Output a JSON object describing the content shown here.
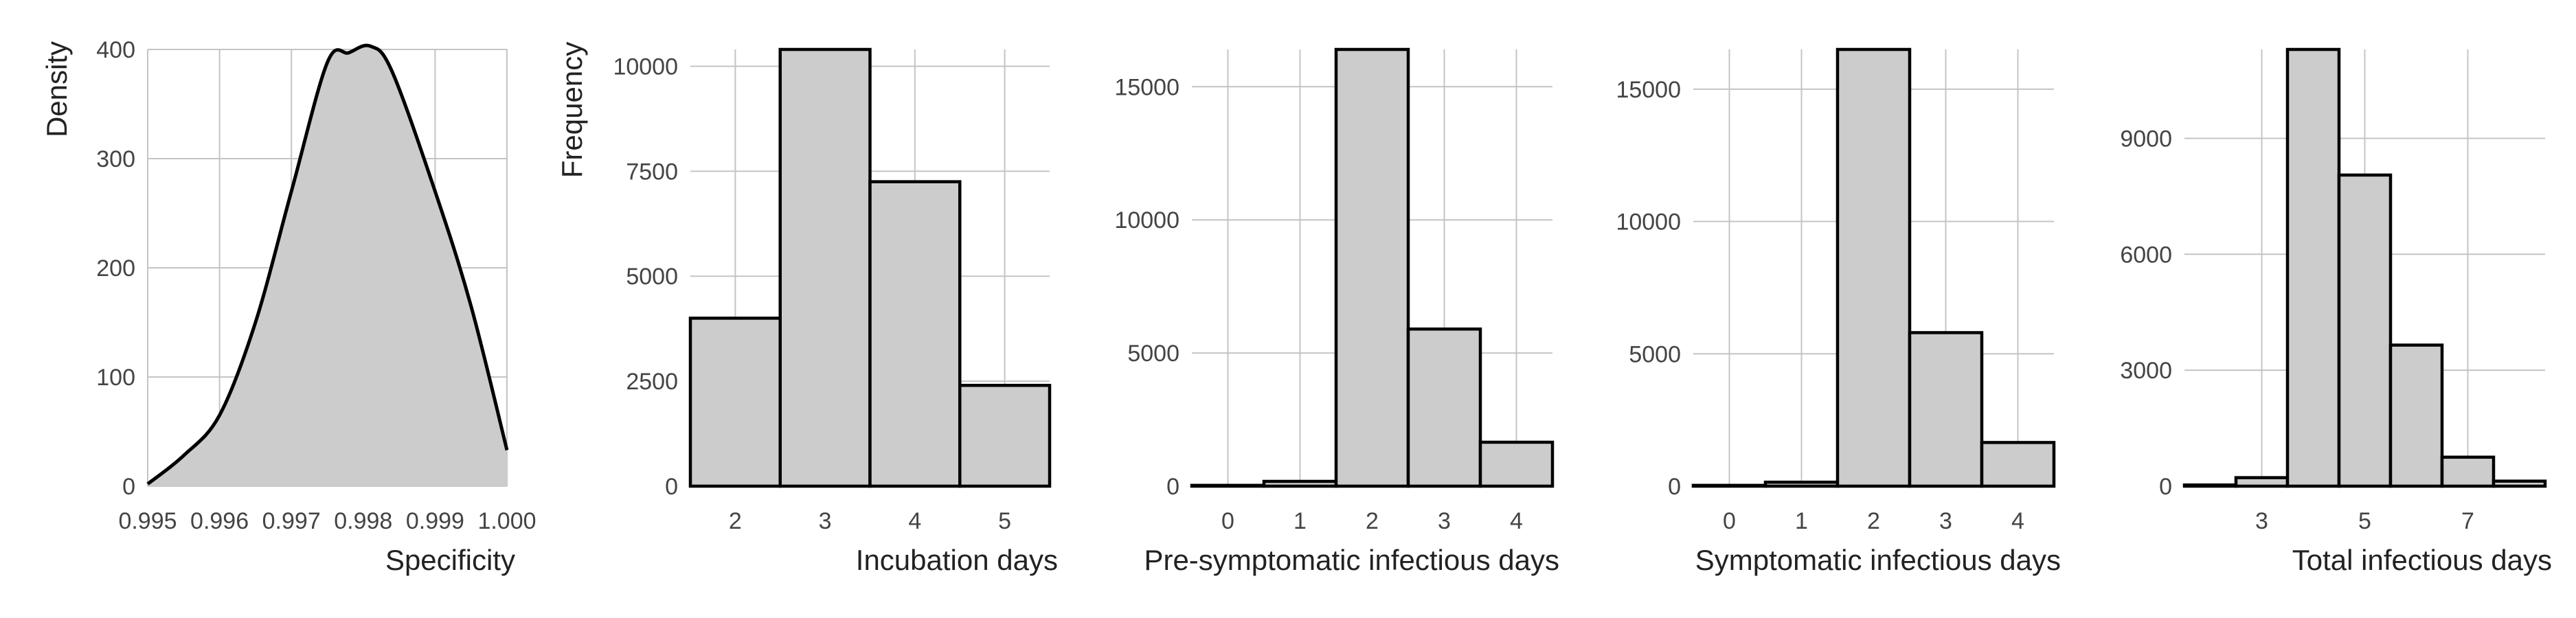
{
  "chart_data": [
    {
      "type": "area",
      "xlabel": "Specificity",
      "ylabel": "Density",
      "xlim": [
        0.995,
        1.0
      ],
      "ylim": [
        0,
        400
      ],
      "xticks": [
        0.995,
        0.996,
        0.997,
        0.998,
        0.999,
        1.0
      ],
      "xtick_labels": [
        "0.995",
        "0.996",
        "0.997",
        "0.998",
        "0.999",
        "1.000"
      ],
      "yticks": [
        0,
        100,
        200,
        300,
        400
      ],
      "ytick_labels": [
        "0",
        "100",
        "200",
        "300",
        "400"
      ],
      "grid": true,
      "x": [
        0.995,
        0.9955,
        0.996,
        0.9965,
        0.997,
        0.9975,
        0.9978,
        0.9981,
        0.9984,
        0.999,
        0.9995,
        1.0
      ],
      "y": [
        2,
        28,
        65,
        150,
        270,
        388,
        397,
        403,
        380,
        270,
        165,
        33
      ]
    },
    {
      "type": "bar",
      "xlabel": "Incubation days",
      "ylabel": "Frequency",
      "xlim": [
        1.5,
        5.5
      ],
      "ylim": [
        0,
        10400
      ],
      "categories": [
        2,
        3,
        4,
        5
      ],
      "values": [
        4000,
        10400,
        7250,
        2400
      ],
      "xticks": [
        2,
        3,
        4,
        5
      ],
      "xtick_labels": [
        "2",
        "3",
        "4",
        "5"
      ],
      "yticks": [
        0,
        2500,
        5000,
        7500,
        10000
      ],
      "ytick_labels": [
        "0",
        "2500",
        "5000",
        "7500",
        "10000"
      ],
      "grid": true
    },
    {
      "type": "bar",
      "xlabel": "Pre-symptomatic infectious days",
      "ylabel": "",
      "xlim": [
        -0.5,
        4.5
      ],
      "ylim": [
        0,
        16400
      ],
      "categories": [
        0,
        1,
        2,
        3,
        4
      ],
      "values": [
        30,
        180,
        16400,
        5900,
        1650
      ],
      "xticks": [
        0,
        1,
        2,
        3,
        4
      ],
      "xtick_labels": [
        "0",
        "1",
        "2",
        "3",
        "4"
      ],
      "yticks": [
        0,
        5000,
        10000,
        15000
      ],
      "ytick_labels": [
        "0",
        "5000",
        "10000",
        "15000"
      ],
      "grid": true
    },
    {
      "type": "bar",
      "xlabel": "Symptomatic infectious days",
      "ylabel": "",
      "xlim": [
        -0.5,
        4.5
      ],
      "ylim": [
        0,
        16500
      ],
      "categories": [
        0,
        1,
        2,
        3,
        4
      ],
      "values": [
        30,
        150,
        16500,
        5800,
        1650
      ],
      "xticks": [
        0,
        1,
        2,
        3,
        4
      ],
      "xtick_labels": [
        "0",
        "1",
        "2",
        "3",
        "4"
      ],
      "yticks": [
        0,
        5000,
        10000,
        15000
      ],
      "ytick_labels": [
        "0",
        "5000",
        "10000",
        "15000"
      ],
      "grid": true
    },
    {
      "type": "bar",
      "xlabel": "Total infectious days",
      "ylabel": "",
      "xlim": [
        1.5,
        8.5
      ],
      "ylim": [
        0,
        11300
      ],
      "categories": [
        2,
        3,
        4,
        5,
        6,
        7,
        8
      ],
      "values": [
        30,
        220,
        11300,
        8050,
        3650,
        750,
        130
      ],
      "xticks": [
        3,
        5,
        7
      ],
      "xtick_labels": [
        "3",
        "5",
        "7"
      ],
      "yticks": [
        0,
        3000,
        6000,
        9000
      ],
      "ytick_labels": [
        "0",
        "3000",
        "6000",
        "9000"
      ],
      "grid": true
    }
  ]
}
